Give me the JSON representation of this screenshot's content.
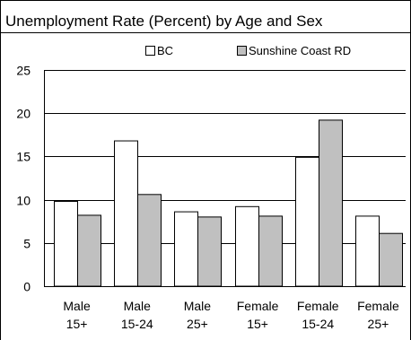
{
  "chart_data": {
    "type": "bar",
    "title": "Unemployment Rate (Percent) by Age and Sex",
    "categories": [
      [
        "Male",
        "15+"
      ],
      [
        "Male",
        "15-24"
      ],
      [
        "Male",
        "25+"
      ],
      [
        "Female",
        "15+"
      ],
      [
        "Female",
        "15-24"
      ],
      [
        "Female",
        "25+"
      ]
    ],
    "series": [
      {
        "name": "BC",
        "color": "#ffffff",
        "values": [
          9.8,
          16.8,
          8.6,
          9.2,
          14.9,
          8.1
        ]
      },
      {
        "name": "Sunshine Coast RD",
        "color": "#c0c0c0",
        "values": [
          8.2,
          10.6,
          8.0,
          8.1,
          19.2,
          6.1
        ]
      }
    ],
    "yticks": [
      "0",
      "5",
      "10",
      "15",
      "20",
      "25"
    ],
    "ylim": [
      0,
      25
    ],
    "grid": true,
    "legend": "top"
  }
}
